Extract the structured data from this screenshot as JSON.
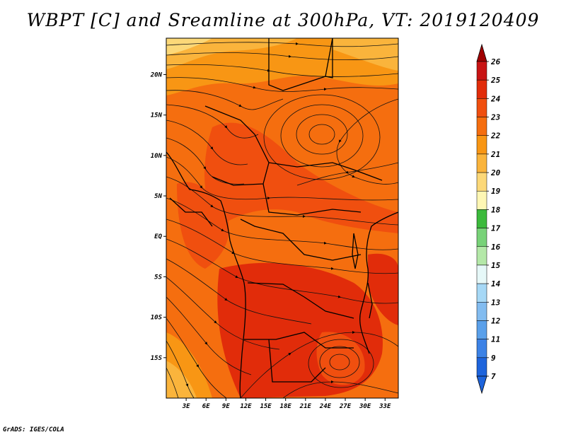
{
  "title": "WBPT [C] and Sreamline at 300hPa, VT: 2019120409",
  "credit": "GrADS: IGES/COLA",
  "chart_data": {
    "type": "heatmap",
    "overlay": "streamlines",
    "variable": "Wet-bulb potential temperature",
    "units": "C",
    "level": "300hPa",
    "valid_time": "2019120409",
    "x_axis": {
      "range_lon": [
        0,
        35
      ],
      "ticks": [
        {
          "value": 3,
          "label": "3E"
        },
        {
          "value": 6,
          "label": "6E"
        },
        {
          "value": 9,
          "label": "9E"
        },
        {
          "value": 12,
          "label": "12E"
        },
        {
          "value": 15,
          "label": "15E"
        },
        {
          "value": 18,
          "label": "18E"
        },
        {
          "value": 21,
          "label": "21E"
        },
        {
          "value": 24,
          "label": "24E"
        },
        {
          "value": 27,
          "label": "27E"
        },
        {
          "value": 30,
          "label": "30E"
        },
        {
          "value": 33,
          "label": "33E"
        }
      ]
    },
    "y_axis": {
      "range_lat": [
        -20,
        24.5
      ],
      "ticks": [
        {
          "value": 20,
          "label": "20N"
        },
        {
          "value": 15,
          "label": "15N"
        },
        {
          "value": 10,
          "label": "10N"
        },
        {
          "value": 5,
          "label": "5N"
        },
        {
          "value": 0,
          "label": "EQ"
        },
        {
          "value": -5,
          "label": "5S"
        },
        {
          "value": -10,
          "label": "10S"
        },
        {
          "value": -15,
          "label": "15S"
        }
      ]
    },
    "colorbar": {
      "levels": [
        {
          "label": "26",
          "color": "#a00000"
        },
        {
          "label": "25",
          "color": "#c81414"
        },
        {
          "label": "24",
          "color": "#e12c0a"
        },
        {
          "label": "23",
          "color": "#f04f0f"
        },
        {
          "label": "22",
          "color": "#f56e0f"
        },
        {
          "label": "21",
          "color": "#f89614"
        },
        {
          "label": "20",
          "color": "#fab43c"
        },
        {
          "label": "19",
          "color": "#fcd878"
        },
        {
          "label": "18",
          "color": "#fef7b4"
        },
        {
          "label": "17",
          "color": "#3cba3c"
        },
        {
          "label": "16",
          "color": "#78d278"
        },
        {
          "label": "15",
          "color": "#b4e8a8"
        },
        {
          "label": "14",
          "color": "#e6f8f8"
        },
        {
          "label": "13",
          "color": "#a6d8f6"
        },
        {
          "label": "12",
          "color": "#82bcf0"
        },
        {
          "label": "11",
          "color": "#5aa0ea"
        },
        {
          "label": "9",
          "color": "#3c82e6"
        },
        {
          "label": "7",
          "color": "#1e64dc"
        }
      ],
      "max_arrow_color": "#a00000",
      "min_arrow_color": "#1e64dc"
    },
    "regions": [
      {
        "name": "northern edge",
        "value_range": "19-21"
      },
      {
        "name": "central Africa / Congo basin",
        "value_range": "22-23"
      },
      {
        "name": "southern Africa interior",
        "value_range": "23-24"
      },
      {
        "name": "southwest Atlantic corner",
        "value_range": "20-21"
      },
      {
        "name": "eastern Indian Ocean coast",
        "value_range": "22-23"
      }
    ],
    "features": [
      {
        "name": "anticyclonic circulation centre",
        "lat": 13,
        "lon": 22
      },
      {
        "name": "anticyclonic circulation centre",
        "lat": -14,
        "lon": 25
      }
    ]
  }
}
